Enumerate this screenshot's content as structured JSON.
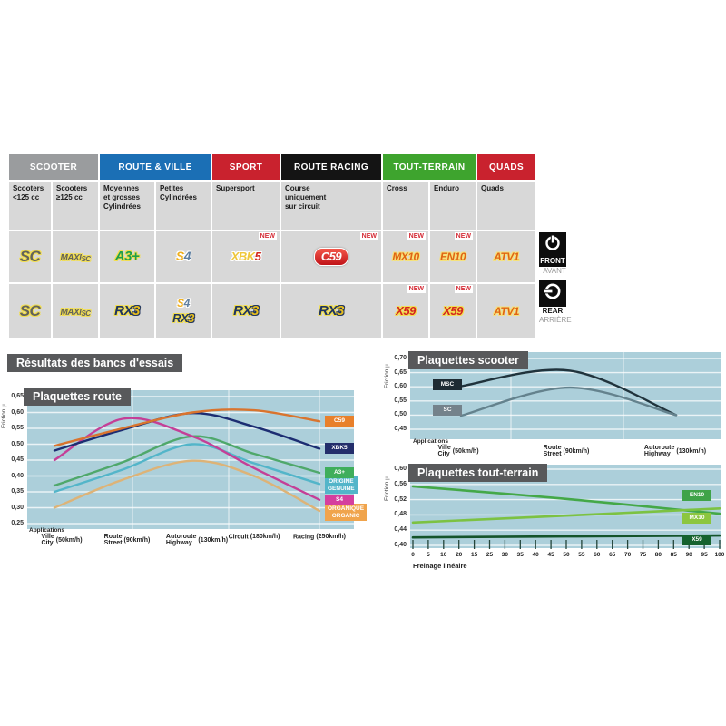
{
  "new_label": "NEW",
  "categories": [
    {
      "label": "SCOOTER",
      "bg": "#9A9C9E"
    },
    {
      "label": "ROUTE & VILLE",
      "bg": "#1B6FB5"
    },
    {
      "label": "SPORT",
      "bg": "#C9222E"
    },
    {
      "label": "ROUTE RACING",
      "bg": "#141414"
    },
    {
      "label": "TOUT-TERRAIN",
      "bg": "#3EA42E"
    },
    {
      "label": "QUADS",
      "bg": "#C9222E"
    }
  ],
  "subheaders": [
    "Scooters\n<125 cc",
    "Scooters\n≥125 cc",
    "Moyennes\net grosses\nCylindrées",
    "Petites\nCylindrées",
    "Supersport",
    "Course\nuniquement\nsur circuit",
    "Cross",
    "Enduro",
    "Quads"
  ],
  "rows": {
    "front": [
      {
        "badge": [
          {
            "t": "SC",
            "c": "c-sc"
          }
        ]
      },
      {
        "badge": [
          {
            "t": "MAXI",
            "c": "c-maxi"
          },
          {
            "t": "SC",
            "c": "c-maxisc"
          }
        ]
      },
      {
        "badge": [
          {
            "t": "A3+",
            "c": "c-a3"
          }
        ]
      },
      {
        "badge": [
          {
            "t": "S",
            "c": "c-s4s"
          },
          {
            "t": "4",
            "c": "c-s44"
          }
        ]
      },
      {
        "badge": [
          {
            "t": "XBK",
            "c": "c-xbk"
          },
          {
            "t": "5",
            "c": "c-red5"
          }
        ],
        "new": true
      },
      {
        "badge": [
          {
            "t": "C59",
            "c": "c-c59"
          }
        ],
        "pill": true,
        "new": true
      },
      {
        "badge": [
          {
            "t": "MX10",
            "c": "c-hot"
          }
        ],
        "new": true
      },
      {
        "badge": [
          {
            "t": "EN10",
            "c": "c-hot"
          }
        ],
        "new": true
      },
      {
        "badge": [
          {
            "t": "ATV1",
            "c": "c-hot"
          }
        ]
      }
    ],
    "rear": [
      {
        "badge": [
          {
            "t": "SC",
            "c": "c-sc"
          }
        ]
      },
      {
        "badge": [
          {
            "t": "MAXI",
            "c": "c-maxi"
          },
          {
            "t": "SC",
            "c": "c-maxisc"
          }
        ]
      },
      {
        "badge": [
          {
            "t": "RX",
            "c": "c-rx"
          },
          {
            "t": "3",
            "c": "c-rx3"
          }
        ]
      },
      {
        "stack": [
          [
            {
              "t": "S",
              "c": "c-s4s"
            },
            {
              "t": "4",
              "c": "c-s44"
            }
          ],
          [
            {
              "t": "RX",
              "c": "c-rx"
            },
            {
              "t": "3",
              "c": "c-rx3"
            }
          ]
        ]
      },
      {
        "badge": [
          {
            "t": "RX",
            "c": "c-rx"
          },
          {
            "t": "3",
            "c": "c-rx3"
          }
        ]
      },
      {
        "badge": [
          {
            "t": "RX",
            "c": "c-rx"
          },
          {
            "t": "3",
            "c": "c-rx3"
          }
        ]
      },
      {
        "badge": [
          {
            "t": "X59",
            "c": "c-x59"
          }
        ],
        "new": true
      },
      {
        "badge": [
          {
            "t": "X59",
            "c": "c-x59"
          }
        ],
        "new": true
      },
      {
        "badge": [
          {
            "t": "ATV1",
            "c": "c-hot"
          }
        ]
      }
    ]
  },
  "side": {
    "front": {
      "label": "FRONT",
      "sub": "AVANT"
    },
    "rear": {
      "label": "REAR",
      "sub": "ARRIÈRE"
    }
  },
  "section_title": "Résultats des bancs d'essais",
  "chart_data": [
    {
      "type": "line",
      "title": "Plaquettes route",
      "ylabel": "Friction µ",
      "applications_label": "Applications",
      "ylim": [
        0.25,
        0.65
      ],
      "ytick_labels": [
        "0,65",
        "0,60",
        "0,55",
        "0,50",
        "0,45",
        "0,40",
        "0,35",
        "0,30",
        "0,25"
      ],
      "categories": [
        {
          "fr": "Ville",
          "en": "City",
          "speed": "(50km/h)"
        },
        {
          "fr": "Route",
          "en": "Street",
          "speed": "(90km/h)"
        },
        {
          "fr": "Autoroute",
          "en": "Highway",
          "speed": "(130km/h)"
        },
        {
          "fr": "Circuit",
          "en": "",
          "speed": "(180km/h)"
        },
        {
          "fr": "Racing",
          "en": "",
          "speed": "(250km/h)"
        }
      ],
      "legend_position": "right",
      "grid": true,
      "series": [
        {
          "name": "ORGANIQUE\nORGANIC",
          "color": "#DDB377",
          "label_bg": "#F0A44C",
          "values": [
            0.3,
            0.388,
            0.448,
            0.4,
            0.29
          ]
        },
        {
          "name": "ORIGINE\nGENUINE",
          "color": "#53B5C9",
          "label_bg": "#53B5C9",
          "values": [
            0.35,
            0.42,
            0.5,
            0.44,
            0.375
          ]
        },
        {
          "name": "A3+",
          "color": "#4FA86B",
          "label_bg": "#3FAE5C",
          "values": [
            0.37,
            0.443,
            0.525,
            0.47,
            0.41
          ]
        },
        {
          "name": "S4",
          "color": "#C43F97",
          "label_bg": "#D53F9E",
          "values": [
            0.45,
            0.58,
            0.525,
            0.425,
            0.325
          ]
        },
        {
          "name": "XBK5",
          "color": "#1C2D72",
          "label_bg": "#232E6B",
          "values": [
            0.48,
            0.545,
            0.598,
            0.555,
            0.486
          ]
        },
        {
          "name": "C59",
          "color": "#D9742E",
          "label_bg": "#E8802B",
          "values": [
            0.495,
            0.55,
            0.6,
            0.607,
            0.572
          ]
        }
      ]
    },
    {
      "type": "line",
      "title": "Plaquettes scooter",
      "ylabel": "Friction µ",
      "applications_label": "Applications",
      "ylim": [
        0.45,
        0.7
      ],
      "ytick_labels": [
        "0,70",
        "0,65",
        "0,60",
        "0,55",
        "0,50",
        "0,45"
      ],
      "categories": [
        {
          "fr": "Ville",
          "en": "City",
          "speed": "(50km/h)"
        },
        {
          "fr": "Route",
          "en": "Street",
          "speed": "(90km/h)"
        },
        {
          "fr": "Autoroute",
          "en": "Highway",
          "speed": "(130km/h)"
        }
      ],
      "legend_position": "left",
      "grid": true,
      "series": [
        {
          "name": "MSC",
          "color": "#20333C",
          "label_bg": "#1E2B33",
          "values": [
            0.602,
            0.657,
            0.5
          ]
        },
        {
          "name": "SC",
          "color": "#64828D",
          "label_bg": "#74828B",
          "values": [
            0.498,
            0.597,
            0.5
          ]
        }
      ]
    },
    {
      "type": "line",
      "title": "Plaquettes tout-terrain",
      "ylabel": "Friction µ",
      "xlabel": "Freinage linéaire",
      "ylim": [
        0.4,
        0.6
      ],
      "xlim": [
        0,
        100
      ],
      "ytick_labels": [
        "0,60",
        "0,56",
        "0,52",
        "0,48",
        "0,44",
        "0,40"
      ],
      "xtick_labels": [
        "0",
        "5",
        "10",
        "20",
        "15",
        "25",
        "30",
        "35",
        "40",
        "45",
        "50",
        "55",
        "60",
        "65",
        "70",
        "75",
        "80",
        "85",
        "90",
        "95",
        "100"
      ],
      "legend_position": "right",
      "grid": true,
      "series": [
        {
          "name": "EN10",
          "color": "#44A848",
          "label_bg": "#3FA348",
          "points": [
            [
              0,
              0.555
            ],
            [
              50,
              0.522
            ],
            [
              100,
              0.483
            ]
          ]
        },
        {
          "name": "MX10",
          "color": "#7CC242",
          "label_bg": "#8CC63F",
          "points": [
            [
              0,
              0.46
            ],
            [
              50,
              0.478
            ],
            [
              100,
              0.497
            ]
          ]
        },
        {
          "name": "X59",
          "color": "#14532A",
          "label_bg": "#15622E",
          "points": [
            [
              0,
              0.421
            ],
            [
              100,
              0.426
            ]
          ]
        }
      ]
    }
  ]
}
